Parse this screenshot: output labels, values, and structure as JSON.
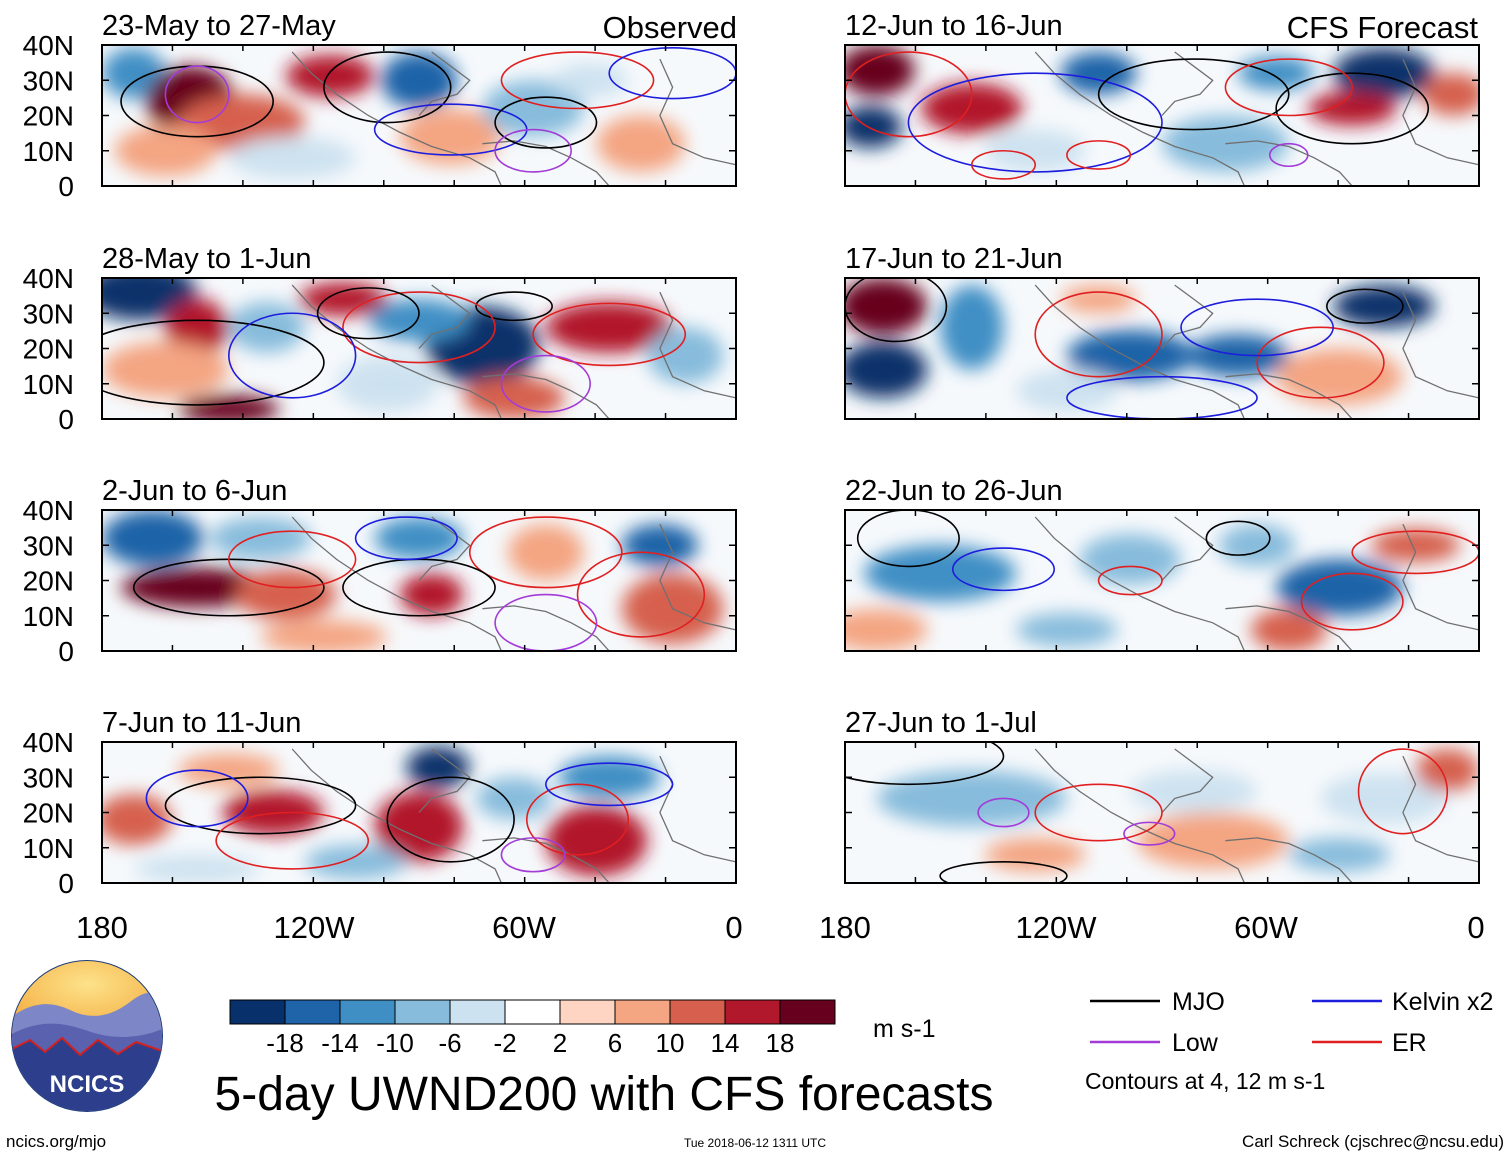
{
  "title": "5-day UWND200 with CFS forecasts",
  "observed_label": "Observed",
  "forecast_label": "CFS Forecast",
  "panels": [
    {
      "period": "23-May to 27-May",
      "kind": "observed"
    },
    {
      "period": "28-May to 1-Jun",
      "kind": "observed"
    },
    {
      "period": "2-Jun to 6-Jun",
      "kind": "observed"
    },
    {
      "period": "7-Jun to 11-Jun",
      "kind": "observed"
    },
    {
      "period": "12-Jun to 16-Jun",
      "kind": "forecast"
    },
    {
      "period": "17-Jun to 21-Jun",
      "kind": "forecast"
    },
    {
      "period": "22-Jun to 26-Jun",
      "kind": "forecast"
    },
    {
      "period": "27-Jun to 1-Jul",
      "kind": "forecast"
    }
  ],
  "lat_labels": [
    "40N",
    "30N",
    "20N",
    "10N",
    "0"
  ],
  "lon_labels": [
    "180",
    "120W",
    "60W",
    "0"
  ],
  "colorbar": {
    "unit": "m s-1",
    "ticks": [
      "-18",
      "-14",
      "-10",
      "-6",
      "-2",
      "2",
      "6",
      "10",
      "14",
      "18"
    ],
    "colors": [
      "#08306b",
      "#1f63a8",
      "#3f8fc5",
      "#87bcdc",
      "#cde2f0",
      "#ffffff",
      "#fdd5c2",
      "#f4a582",
      "#d6604d",
      "#b2182b",
      "#67001f"
    ]
  },
  "legend": {
    "items": [
      {
        "label": "MJO",
        "color": "#000000"
      },
      {
        "label": "Kelvin x2",
        "color": "#1d1dde"
      },
      {
        "label": "Low",
        "color": "#a33bd8"
      },
      {
        "label": "ER",
        "color": "#e02020"
      }
    ],
    "note": "Contours at 4, 12 m s-1"
  },
  "logo": {
    "text": "NCICS"
  },
  "footer": {
    "url": "ncics.org/mjo",
    "timestamp": "Tue 2018-06-12 1311 UTC",
    "credit": "Carl Schreck (cjschrec@ncsu.edu)"
  }
}
